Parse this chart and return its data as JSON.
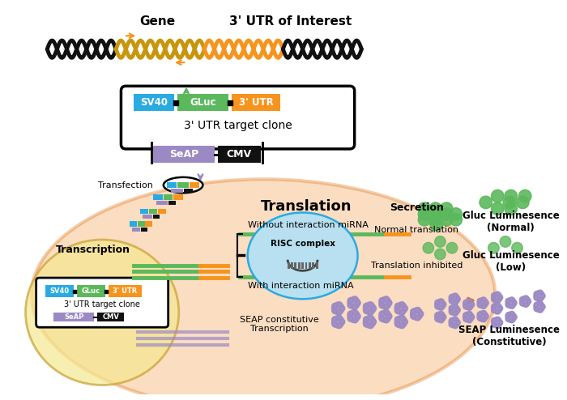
{
  "bg_color": "#ffffff",
  "cell_edge_color": "#e07010",
  "cell_face_color": "#f5a050",
  "nucleus_edge_color": "#c8a030",
  "nucleus_face_color": "#f5e890",
  "sv40_color": "#29abe2",
  "gluc_color": "#5cb85c",
  "utr_color": "#f7941d",
  "seap_color": "#9b89c4",
  "cmv_color": "#111111",
  "green_color": "#5cb85c",
  "purple_color": "#9b89c4",
  "risc_edge": "#29abe2",
  "risc_face": "#b8e0f0",
  "gold_color": "#c8960c",
  "orange_color": "#f7941d",
  "black_color": "#111111",
  "title_gene": "Gene",
  "title_utr": "3' UTR of Interest",
  "label_clone": "3' UTR target clone",
  "label_transfection": "Transfection",
  "label_transcription": "Transcription",
  "label_translation": "Translation",
  "label_secretion": "Secretion",
  "label_without": "Without interaction miRNA",
  "label_with": "With interaction miRNA",
  "label_normal_trans": "Normal translation",
  "label_inhibited": "Translation inhibited",
  "label_seap_const": "SEAP constitutive\nTranscription",
  "label_gluc_normal": "Gluc Luminesence\n(Normal)",
  "label_gluc_low": "Gluc Luminesence\n(Low)",
  "label_seap_lum": "SEAP Luminesence\n(Constitutive)",
  "label_risc": "RISC complex"
}
